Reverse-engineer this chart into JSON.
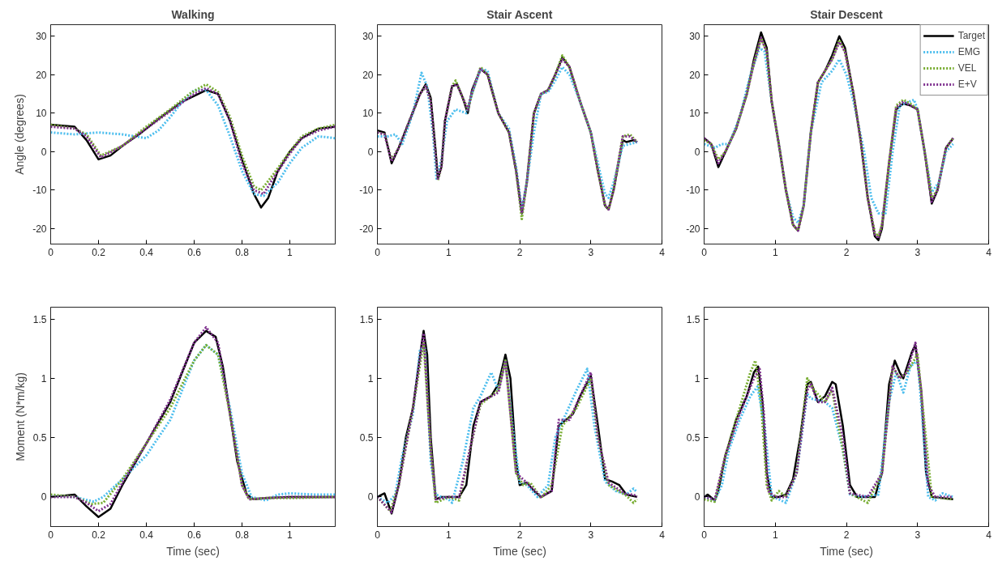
{
  "chart_data": [
    {
      "type": "line",
      "title": "Walking",
      "ylabel": "Angle (degrees)",
      "xlim": [
        0,
        1.19
      ],
      "ylim": [
        -24,
        33
      ],
      "xticks": [
        0,
        0.2,
        0.4,
        0.6,
        0.8,
        1
      ],
      "yticks": [
        -20,
        -10,
        0,
        10,
        20,
        30
      ],
      "series": [
        {
          "color": "#000000",
          "line_style": "solid",
          "x": [
            0,
            0.1,
            0.15,
            0.2,
            0.25,
            0.3,
            0.38,
            0.45,
            0.55,
            0.65,
            0.7,
            0.75,
            0.8,
            0.85,
            0.88,
            0.91,
            0.95,
            1.0,
            1.05,
            1.12,
            1.19
          ],
          "values": [
            7,
            6.5,
            3,
            -2,
            -1,
            1.5,
            5,
            8.5,
            13,
            16,
            15,
            8,
            -2,
            -11,
            -14.5,
            -12,
            -5,
            0,
            3.5,
            6,
            6.5
          ]
        },
        {
          "color": "#4dbeee",
          "line_style": "dotted",
          "x": [
            0,
            0.1,
            0.2,
            0.3,
            0.4,
            0.45,
            0.5,
            0.55,
            0.6,
            0.65,
            0.7,
            0.75,
            0.8,
            0.85,
            0.89,
            0.95,
            1.0,
            1.05,
            1.12,
            1.19
          ],
          "values": [
            5,
            4.5,
            5,
            4.5,
            3.5,
            5.5,
            9,
            13,
            16,
            16,
            12,
            4,
            -5,
            -11,
            -11.5,
            -8,
            -3,
            1,
            4,
            3.5
          ]
        },
        {
          "color": "#77ac30",
          "line_style": "dotted",
          "x": [
            0,
            0.1,
            0.15,
            0.21,
            0.3,
            0.4,
            0.5,
            0.58,
            0.65,
            0.7,
            0.75,
            0.8,
            0.85,
            0.88,
            0.93,
            1.0,
            1.05,
            1.12,
            1.19
          ],
          "values": [
            7,
            6,
            4.5,
            -1,
            1.5,
            6.5,
            11,
            15,
            17.5,
            15.5,
            9,
            -1,
            -9,
            -10,
            -6,
            0,
            4,
            6,
            7
          ]
        },
        {
          "color": "#7e2f8e",
          "line_style": "dotted",
          "x": [
            0,
            0.1,
            0.15,
            0.21,
            0.3,
            0.4,
            0.5,
            0.6,
            0.65,
            0.7,
            0.75,
            0.8,
            0.85,
            0.89,
            0.93,
            1.0,
            1.05,
            1.12,
            1.19
          ],
          "values": [
            6.5,
            6,
            4,
            -1.5,
            1.5,
            6,
            10.5,
            15,
            16.5,
            15,
            8,
            -3,
            -10,
            -11,
            -7,
            -0.5,
            3.5,
            5.5,
            6.5
          ]
        }
      ]
    },
    {
      "type": "line",
      "title": "Stair Ascent",
      "xlim": [
        0,
        4
      ],
      "ylim": [
        -24,
        33
      ],
      "xticks": [
        0,
        1,
        2,
        3,
        4
      ],
      "yticks": [
        -20,
        -10,
        0,
        10,
        20,
        30
      ],
      "series": [
        {
          "color": "#000000",
          "line_style": "solid",
          "x": [
            0,
            0.1,
            0.2,
            0.3,
            0.45,
            0.6,
            0.68,
            0.75,
            0.82,
            0.85,
            0.9,
            0.95,
            1.05,
            1.12,
            1.2,
            1.27,
            1.33,
            1.45,
            1.55,
            1.7,
            1.85,
            1.95,
            2.03,
            2.1,
            2.2,
            2.3,
            2.4,
            2.5,
            2.6,
            2.7,
            2.85,
            3.0,
            3.1,
            3.2,
            3.25,
            3.32,
            3.45,
            3.5,
            3.6,
            3.65
          ],
          "values": [
            5.5,
            5,
            -3,
            1,
            8,
            15,
            17.5,
            14,
            0,
            -7,
            -4,
            8,
            17,
            17.5,
            14,
            10,
            16,
            21.5,
            20,
            10,
            5,
            -5,
            -16,
            -8,
            10,
            15,
            16,
            20,
            24.5,
            22,
            13,
            5,
            -5,
            -14,
            -15,
            -10,
            3,
            2.5,
            3,
            2.5
          ]
        },
        {
          "color": "#4dbeee",
          "line_style": "dotted",
          "x": [
            0,
            0.15,
            0.25,
            0.35,
            0.5,
            0.62,
            0.7,
            0.78,
            0.83,
            0.9,
            0.98,
            1.1,
            1.25,
            1.33,
            1.45,
            1.55,
            1.7,
            1.85,
            1.95,
            2.03,
            2.1,
            2.2,
            2.3,
            2.4,
            2.5,
            2.6,
            2.7,
            2.85,
            3.0,
            3.1,
            3.2,
            3.25,
            3.32,
            3.45,
            3.55,
            3.65
          ],
          "values": [
            4,
            4,
            4.5,
            2,
            10,
            20.5,
            17,
            5,
            -7,
            -2,
            8,
            11,
            10,
            15,
            21.5,
            21,
            10,
            6,
            -4,
            -15,
            -8,
            5,
            15,
            15.5,
            18.5,
            22,
            20,
            13,
            5,
            -3,
            -11,
            -12,
            -8,
            1.5,
            2,
            2.5
          ]
        },
        {
          "color": "#77ac30",
          "line_style": "dotted",
          "x": [
            0,
            0.1,
            0.2,
            0.3,
            0.45,
            0.6,
            0.68,
            0.75,
            0.82,
            0.85,
            0.9,
            0.95,
            1.05,
            1.1,
            1.2,
            1.27,
            1.33,
            1.45,
            1.55,
            1.7,
            1.85,
            1.95,
            2.03,
            2.1,
            2.2,
            2.3,
            2.4,
            2.5,
            2.6,
            2.7,
            2.85,
            3.0,
            3.1,
            3.2,
            3.25,
            3.32,
            3.45,
            3.55,
            3.65
          ],
          "values": [
            5,
            4.5,
            -2,
            1,
            8,
            15,
            17,
            13,
            -1,
            -7.5,
            -4,
            8,
            17,
            18.5,
            14,
            11,
            15,
            22,
            20,
            10,
            5,
            -5,
            -17.5,
            -8,
            10,
            15,
            16,
            20,
            25,
            22,
            13,
            5,
            -5,
            -14,
            -15,
            -10,
            4,
            4.5,
            2.5
          ]
        },
        {
          "color": "#7e2f8e",
          "line_style": "dotted",
          "x": [
            0,
            0.1,
            0.2,
            0.3,
            0.45,
            0.6,
            0.68,
            0.75,
            0.82,
            0.85,
            0.9,
            0.95,
            1.05,
            1.12,
            1.2,
            1.27,
            1.33,
            1.45,
            1.55,
            1.7,
            1.85,
            1.95,
            2.03,
            2.1,
            2.2,
            2.3,
            2.4,
            2.5,
            2.6,
            2.7,
            2.85,
            3.0,
            3.1,
            3.2,
            3.25,
            3.32,
            3.45,
            3.55,
            3.65
          ],
          "values": [
            5,
            4.5,
            -2.5,
            1,
            8,
            15,
            17,
            13,
            -1,
            -7,
            -4,
            8,
            17,
            17.5,
            14,
            11,
            15.5,
            21.5,
            20,
            10,
            5,
            -5,
            -16,
            -8,
            10,
            15,
            16,
            20,
            24,
            22,
            13,
            5,
            -5,
            -14,
            -15,
            -10,
            4,
            4,
            2.5
          ]
        }
      ]
    },
    {
      "type": "line",
      "title": "Stair Descent",
      "legend": "top right",
      "xlim": [
        0,
        4
      ],
      "ylim": [
        -24,
        33
      ],
      "xticks": [
        0,
        1,
        2,
        3,
        4
      ],
      "yticks": [
        -20,
        -10,
        0,
        10,
        20,
        30
      ],
      "series": [
        {
          "name": "Target",
          "color": "#000000",
          "line_style": "solid",
          "x": [
            0,
            0.1,
            0.2,
            0.3,
            0.45,
            0.6,
            0.7,
            0.8,
            0.88,
            0.95,
            1.05,
            1.15,
            1.25,
            1.32,
            1.4,
            1.5,
            1.6,
            1.7,
            1.8,
            1.9,
            1.98,
            2.1,
            2.2,
            2.3,
            2.4,
            2.45,
            2.5,
            2.6,
            2.7,
            2.8,
            2.9,
            3.0,
            3.1,
            3.2,
            3.28,
            3.4,
            3.5
          ],
          "values": [
            3.5,
            2,
            -4,
            0,
            6,
            15,
            24,
            31,
            27,
            13,
            2,
            -10,
            -19,
            -20.5,
            -14,
            5,
            18,
            21,
            25,
            30,
            27,
            15,
            3,
            -12,
            -22,
            -23,
            -20,
            -3,
            11,
            12.5,
            12,
            11,
            0,
            -13.5,
            -10,
            1,
            3.5
          ]
        },
        {
          "name": "EMG",
          "color": "#4dbeee",
          "line_style": "dotted",
          "x": [
            0,
            0.15,
            0.25,
            0.35,
            0.5,
            0.65,
            0.78,
            0.85,
            0.95,
            1.05,
            1.15,
            1.25,
            1.32,
            1.4,
            1.5,
            1.65,
            1.8,
            1.9,
            2.0,
            2.1,
            2.25,
            2.35,
            2.45,
            2.55,
            2.65,
            2.75,
            2.95,
            3.0,
            3.1,
            3.2,
            3.3,
            3.4,
            3.5
          ],
          "values": [
            2,
            1,
            2,
            2,
            9,
            20,
            27,
            26,
            13,
            2,
            -10,
            -17,
            -18.5,
            -14,
            5,
            18,
            21,
            24,
            20,
            13,
            0,
            -12,
            -16,
            -16,
            0,
            12,
            13.5,
            11,
            0,
            -10.5,
            -8,
            0,
            2
          ]
        },
        {
          "name": "VEL",
          "color": "#77ac30",
          "line_style": "dotted",
          "x": [
            0,
            0.1,
            0.2,
            0.3,
            0.45,
            0.6,
            0.7,
            0.8,
            0.88,
            0.95,
            1.05,
            1.15,
            1.25,
            1.32,
            1.4,
            1.5,
            1.6,
            1.8,
            1.9,
            1.98,
            2.1,
            2.2,
            2.3,
            2.4,
            2.45,
            2.5,
            2.6,
            2.7,
            2.8,
            2.9,
            3.0,
            3.1,
            3.2,
            3.28,
            3.4,
            3.5
          ],
          "values": [
            3,
            2,
            -2,
            0,
            6,
            15,
            23,
            29.5,
            26,
            13,
            2,
            -10,
            -19,
            -20.5,
            -14,
            5,
            18,
            24,
            29,
            26,
            15,
            3,
            -12,
            -21,
            -22,
            -19,
            -3,
            12,
            13.5,
            12.5,
            11,
            0,
            -12,
            -10,
            1,
            3.5
          ]
        },
        {
          "name": "E+V",
          "color": "#7e2f8e",
          "line_style": "dotted",
          "x": [
            0,
            0.1,
            0.2,
            0.3,
            0.45,
            0.6,
            0.7,
            0.8,
            0.88,
            0.95,
            1.05,
            1.15,
            1.25,
            1.32,
            1.4,
            1.5,
            1.6,
            1.8,
            1.9,
            1.98,
            2.1,
            2.2,
            2.3,
            2.4,
            2.45,
            2.5,
            2.6,
            2.7,
            2.8,
            2.9,
            3.0,
            3.1,
            3.2,
            3.28,
            3.4,
            3.5
          ],
          "values": [
            3.5,
            2,
            -3,
            0,
            6,
            15,
            23,
            29.5,
            26,
            13,
            2,
            -10,
            -19,
            -20.5,
            -14,
            5,
            18,
            24,
            28.5,
            26,
            15,
            3,
            -12,
            -21.5,
            -22.5,
            -19,
            -3,
            11.5,
            13,
            12,
            11,
            0,
            -13,
            -10,
            1,
            3.5
          ]
        }
      ]
    },
    {
      "type": "line",
      "xlabel": "Time (sec)",
      "ylabel": "Moment (N*m/kg)",
      "xlim": [
        0,
        1.19
      ],
      "ylim": [
        -0.25,
        1.6
      ],
      "xticks": [
        0,
        0.2,
        0.4,
        0.6,
        0.8,
        1
      ],
      "yticks": [
        0,
        0.5,
        1,
        1.5
      ],
      "series": [
        {
          "color": "#000000",
          "line_style": "solid",
          "x": [
            0,
            0.1,
            0.15,
            0.2,
            0.25,
            0.3,
            0.4,
            0.5,
            0.55,
            0.6,
            0.65,
            0.69,
            0.72,
            0.75,
            0.78,
            0.82,
            0.85,
            0.9,
            1.0,
            1.19
          ],
          "values": [
            0,
            0.02,
            -0.08,
            -0.17,
            -0.1,
            0.1,
            0.45,
            0.8,
            1.05,
            1.3,
            1.4,
            1.35,
            1.1,
            0.7,
            0.3,
            0.02,
            -0.02,
            -0.01,
            0,
            0
          ]
        },
        {
          "color": "#4dbeee",
          "line_style": "dotted",
          "x": [
            0,
            0.1,
            0.18,
            0.22,
            0.3,
            0.4,
            0.5,
            0.55,
            0.6,
            0.65,
            0.7,
            0.75,
            0.8,
            0.84,
            0.9,
            0.95,
            1.0,
            1.1,
            1.19
          ],
          "values": [
            0.01,
            0,
            -0.04,
            0,
            0.15,
            0.35,
            0.65,
            0.9,
            1.15,
            1.28,
            1.2,
            0.75,
            0.2,
            0,
            -0.03,
            0.02,
            0.03,
            0.02,
            0.02
          ]
        },
        {
          "color": "#77ac30",
          "line_style": "dotted",
          "x": [
            0,
            0.1,
            0.17,
            0.22,
            0.3,
            0.4,
            0.5,
            0.6,
            0.65,
            0.7,
            0.75,
            0.8,
            0.83,
            0.9,
            1.0,
            1.19
          ],
          "values": [
            0.02,
            0,
            -0.06,
            -0.05,
            0.15,
            0.45,
            0.75,
            1.15,
            1.28,
            1.2,
            0.7,
            0.1,
            -0.02,
            -0.01,
            -0.01,
            0
          ]
        },
        {
          "color": "#7e2f8e",
          "line_style": "dotted",
          "x": [
            0,
            0.1,
            0.15,
            0.2,
            0.25,
            0.3,
            0.4,
            0.5,
            0.6,
            0.65,
            0.7,
            0.75,
            0.8,
            0.83,
            0.9,
            1.0,
            1.19
          ],
          "values": [
            0,
            0,
            -0.05,
            -0.12,
            -0.06,
            0.12,
            0.45,
            0.82,
            1.3,
            1.43,
            1.3,
            0.7,
            0.1,
            -0.02,
            -0.01,
            0,
            0
          ]
        }
      ]
    },
    {
      "type": "line",
      "xlabel": "Time (sec)",
      "xlim": [
        0,
        4
      ],
      "ylim": [
        -0.25,
        1.6
      ],
      "xticks": [
        0,
        1,
        2,
        3,
        4
      ],
      "yticks": [
        0,
        0.5,
        1,
        1.5
      ],
      "series": [
        {
          "color": "#000000",
          "line_style": "solid",
          "x": [
            0,
            0.1,
            0.2,
            0.3,
            0.4,
            0.5,
            0.6,
            0.65,
            0.7,
            0.75,
            0.82,
            0.9,
            1.0,
            1.15,
            1.25,
            1.35,
            1.45,
            1.6,
            1.7,
            1.8,
            1.87,
            1.95,
            2.0,
            2.1,
            2.2,
            2.3,
            2.45,
            2.55,
            2.65,
            2.75,
            2.85,
            3.0,
            3.1,
            3.2,
            3.3,
            3.4,
            3.5,
            3.65
          ],
          "values": [
            0,
            0.03,
            -0.14,
            0.1,
            0.5,
            0.75,
            1.2,
            1.4,
            1.2,
            0.5,
            -0.02,
            0,
            0,
            0,
            0.1,
            0.6,
            0.8,
            0.85,
            0.95,
            1.2,
            1.0,
            0.3,
            0.1,
            0.12,
            0.05,
            0,
            0.05,
            0.6,
            0.65,
            0.7,
            0.85,
            1.02,
            0.6,
            0.15,
            0.13,
            0.1,
            0.02,
            0
          ]
        },
        {
          "color": "#4dbeee",
          "line_style": "dotted",
          "x": [
            0,
            0.15,
            0.25,
            0.35,
            0.5,
            0.6,
            0.67,
            0.75,
            0.82,
            0.9,
            1.0,
            1.05,
            1.2,
            1.35,
            1.45,
            1.6,
            1.7,
            1.8,
            1.9,
            2.0,
            2.1,
            2.25,
            2.4,
            2.5,
            2.65,
            2.8,
            2.95,
            3.05,
            3.2,
            3.35,
            3.5,
            3.6,
            3.65
          ],
          "values": [
            0,
            -0.05,
            0.02,
            0.35,
            0.7,
            1.25,
            1.25,
            0.3,
            0.02,
            0,
            -0.02,
            -0.05,
            0.3,
            0.75,
            0.85,
            1.05,
            0.9,
            1.15,
            0.6,
            0.12,
            0.1,
            0,
            0.1,
            0.5,
            0.7,
            0.9,
            1.08,
            0.6,
            0.13,
            0.05,
            0.02,
            0.07,
            0.04
          ]
        },
        {
          "color": "#77ac30",
          "line_style": "dotted",
          "x": [
            0,
            0.18,
            0.3,
            0.5,
            0.65,
            0.75,
            0.82,
            1.0,
            1.15,
            1.3,
            1.45,
            1.7,
            1.8,
            1.95,
            2.05,
            2.15,
            2.3,
            2.45,
            2.6,
            2.8,
            3.0,
            3.1,
            3.25,
            3.5,
            3.6,
            3.65
          ],
          "values": [
            0,
            -0.12,
            0.1,
            0.75,
            1.3,
            0.4,
            -0.05,
            0,
            -0.03,
            0.4,
            0.78,
            0.9,
            1.15,
            0.2,
            0.1,
            0.12,
            -0.01,
            0.1,
            0.6,
            0.75,
            1.0,
            0.5,
            0.1,
            0.01,
            -0.05,
            -0.02
          ]
        },
        {
          "color": "#7e2f8e",
          "line_style": "dotted",
          "x": [
            0,
            0.2,
            0.3,
            0.5,
            0.65,
            0.75,
            0.82,
            1.0,
            1.15,
            1.3,
            1.45,
            1.7,
            1.8,
            1.95,
            2.1,
            2.3,
            2.45,
            2.55,
            2.7,
            2.85,
            3.0,
            3.1,
            3.25,
            3.5,
            3.6,
            3.65
          ],
          "values": [
            0,
            -0.13,
            0.1,
            0.75,
            1.38,
            0.4,
            -0.02,
            0,
            0,
            0.4,
            0.8,
            0.88,
            1.15,
            0.2,
            0.12,
            0,
            0.05,
            0.65,
            0.65,
            0.85,
            1.05,
            0.5,
            0.12,
            0.02,
            0.02,
            0
          ]
        }
      ]
    },
    {
      "type": "line",
      "xlabel": "Time (sec)",
      "xlim": [
        0,
        4
      ],
      "ylim": [
        -0.25,
        1.6
      ],
      "xticks": [
        0,
        1,
        2,
        3,
        4
      ],
      "yticks": [
        0,
        0.5,
        1,
        1.5
      ],
      "series": [
        {
          "color": "#000000",
          "line_style": "solid",
          "x": [
            0,
            0.05,
            0.15,
            0.2,
            0.3,
            0.45,
            0.6,
            0.7,
            0.76,
            0.82,
            0.88,
            0.95,
            1.05,
            1.15,
            1.25,
            1.35,
            1.45,
            1.5,
            1.6,
            1.7,
            1.8,
            1.85,
            1.95,
            2.05,
            2.15,
            2.4,
            2.5,
            2.6,
            2.68,
            2.75,
            2.8,
            2.92,
            2.97,
            3.05,
            3.12,
            3.2,
            3.5
          ],
          "values": [
            0,
            0.02,
            -0.03,
            0.05,
            0.35,
            0.65,
            0.85,
            1.05,
            1.1,
            0.8,
            0.2,
            0,
            0,
            0.02,
            0.15,
            0.5,
            0.95,
            0.97,
            0.8,
            0.85,
            0.97,
            0.95,
            0.6,
            0.1,
            0,
            0,
            0.2,
            0.95,
            1.15,
            1.05,
            1.0,
            1.22,
            1.28,
            0.9,
            0.2,
            0,
            -0.02
          ]
        },
        {
          "color": "#4dbeee",
          "line_style": "dotted",
          "x": [
            0,
            0.15,
            0.25,
            0.35,
            0.5,
            0.65,
            0.75,
            0.85,
            0.95,
            1.05,
            1.15,
            1.3,
            1.45,
            1.5,
            1.7,
            1.8,
            1.95,
            2.05,
            2.2,
            2.45,
            2.6,
            2.7,
            2.8,
            2.9,
            3.0,
            3.05,
            3.15,
            3.25,
            3.35,
            3.5
          ],
          "values": [
            0,
            -0.03,
            0.1,
            0.4,
            0.65,
            0.85,
            0.93,
            0.6,
            0,
            -0.02,
            -0.05,
            0.2,
            0.87,
            0.83,
            0.8,
            0.75,
            0.4,
            0.02,
            0,
            0.02,
            0.8,
            1.05,
            0.88,
            1.1,
            1.15,
            0.8,
            0,
            -0.03,
            0.03,
            0
          ]
        },
        {
          "color": "#77ac30",
          "line_style": "dotted",
          "x": [
            0,
            0.15,
            0.3,
            0.5,
            0.65,
            0.72,
            0.8,
            0.88,
            0.95,
            1.05,
            1.15,
            1.3,
            1.45,
            1.55,
            1.7,
            1.8,
            1.95,
            2.05,
            2.3,
            2.5,
            2.65,
            2.75,
            2.85,
            3.0,
            3.1,
            3.2,
            3.5
          ],
          "values": [
            -0.02,
            -0.04,
            0.35,
            0.75,
            1.05,
            1.15,
            0.8,
            0.1,
            -0.03,
            0.05,
            0,
            0.2,
            1.0,
            0.9,
            0.8,
            0.9,
            0.4,
            0.03,
            -0.05,
            0.2,
            1.1,
            1.0,
            1.05,
            1.2,
            0.6,
            0,
            -0.02
          ]
        },
        {
          "color": "#7e2f8e",
          "line_style": "dotted",
          "x": [
            0,
            0.15,
            0.3,
            0.5,
            0.7,
            0.78,
            0.84,
            0.9,
            1.0,
            1.15,
            1.3,
            1.45,
            1.5,
            1.6,
            1.7,
            1.8,
            1.95,
            2.05,
            2.3,
            2.5,
            2.65,
            2.75,
            2.85,
            2.97,
            3.05,
            3.15,
            3.25,
            3.5
          ],
          "values": [
            0,
            -0.02,
            0.35,
            0.7,
            1.0,
            1.08,
            0.7,
            0.05,
            0,
            0,
            0.2,
            0.9,
            0.95,
            0.8,
            0.8,
            0.92,
            0.5,
            0.03,
            0,
            0.2,
            1.1,
            1.0,
            1.05,
            1.3,
            0.9,
            0.1,
            0,
            0
          ]
        }
      ]
    }
  ]
}
